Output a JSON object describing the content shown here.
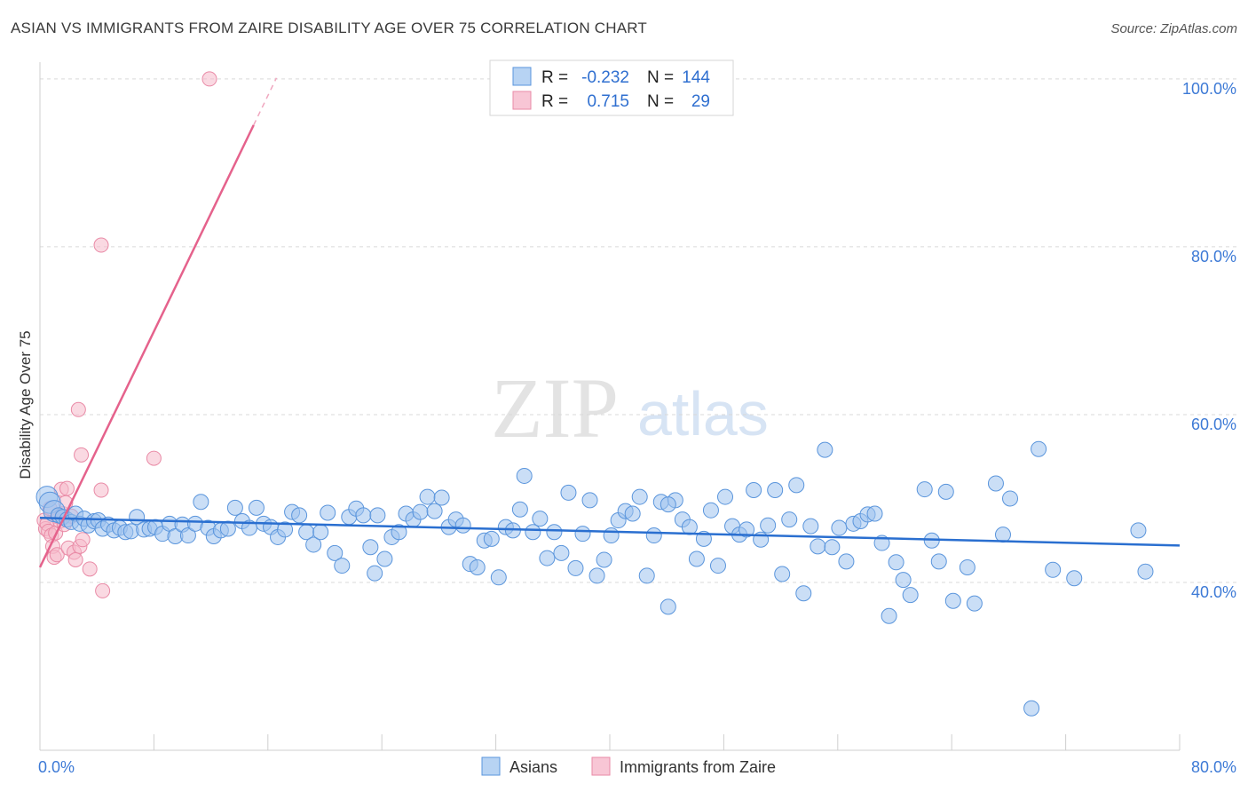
{
  "title": "ASIAN VS IMMIGRANTS FROM ZAIRE DISABILITY AGE OVER 75 CORRELATION CHART",
  "source": "Source: ZipAtlas.com",
  "watermark": {
    "zip": "ZIP",
    "atlas": "atlas"
  },
  "colors": {
    "blue_fill": "#9ec3ef",
    "blue_stroke": "#5a95dc",
    "blue_line": "#2a6fd0",
    "pink_fill": "#f6b9cb",
    "pink_stroke": "#e98aa6",
    "pink_line": "#e5628c",
    "grid": "#d9d9d9",
    "axis_text": "#3d7ad6"
  },
  "legend": {
    "r_label": "R =",
    "n_label": "N =",
    "entries": [
      {
        "r": "-0.232",
        "n": "144"
      },
      {
        "r": "0.715",
        "n": "29"
      }
    ]
  },
  "bottom_legend": [
    "Asians",
    "Immigrants from Zaire"
  ],
  "chart_data": {
    "type": "scatter",
    "title": "ASIAN VS IMMIGRANTS FROM ZAIRE DISABILITY AGE OVER 75 CORRELATION CHART",
    "xlabel": "",
    "ylabel": "Disability Age Over 75",
    "xlim": [
      0,
      80
    ],
    "ylim": [
      20,
      102
    ],
    "x_tick_labels": [
      "0.0%",
      "80.0%"
    ],
    "y_ticks": [
      40,
      60,
      80,
      100
    ],
    "y_tick_labels": [
      "40.0%",
      "60.0%",
      "80.0%",
      "100.0%"
    ],
    "series": [
      {
        "name": "Asians",
        "color": "blue",
        "trend": {
          "x": [
            0,
            80
          ],
          "y": [
            47.7,
            44.4
          ]
        },
        "points": [
          [
            0.5,
            50.2
          ],
          [
            0.7,
            49.5
          ],
          [
            1.0,
            48.5
          ],
          [
            1.3,
            48.0
          ],
          [
            1.6,
            47.8
          ],
          [
            1.9,
            47.5
          ],
          [
            2.2,
            47.2
          ],
          [
            2.5,
            48.2
          ],
          [
            2.8,
            47.0
          ],
          [
            3.1,
            47.6
          ],
          [
            3.4,
            46.8
          ],
          [
            3.8,
            47.3
          ],
          [
            4.1,
            47.4
          ],
          [
            4.4,
            46.4
          ],
          [
            4.8,
            46.9
          ],
          [
            5.2,
            46.2
          ],
          [
            5.6,
            46.5
          ],
          [
            6.0,
            46.0
          ],
          [
            6.4,
            46.1
          ],
          [
            6.8,
            47.8
          ],
          [
            7.3,
            46.3
          ],
          [
            7.7,
            46.4
          ],
          [
            8.1,
            46.6
          ],
          [
            8.6,
            45.8
          ],
          [
            9.1,
            47.0
          ],
          [
            9.5,
            45.5
          ],
          [
            10.0,
            46.9
          ],
          [
            10.4,
            45.6
          ],
          [
            10.9,
            47.0
          ],
          [
            11.3,
            49.6
          ],
          [
            11.8,
            46.5
          ],
          [
            12.2,
            45.5
          ],
          [
            12.7,
            46.2
          ],
          [
            13.2,
            46.4
          ],
          [
            13.7,
            48.9
          ],
          [
            14.2,
            47.3
          ],
          [
            14.7,
            46.5
          ],
          [
            15.2,
            48.9
          ],
          [
            15.7,
            47.0
          ],
          [
            16.2,
            46.6
          ],
          [
            16.7,
            45.4
          ],
          [
            17.2,
            46.3
          ],
          [
            17.7,
            48.4
          ],
          [
            18.2,
            48.0
          ],
          [
            18.7,
            46.0
          ],
          [
            19.2,
            44.5
          ],
          [
            19.7,
            46.0
          ],
          [
            20.2,
            48.3
          ],
          [
            20.7,
            43.5
          ],
          [
            21.2,
            42.0
          ],
          [
            21.7,
            47.8
          ],
          [
            22.2,
            48.8
          ],
          [
            22.7,
            48.0
          ],
          [
            23.2,
            44.2
          ],
          [
            23.7,
            48.0
          ],
          [
            24.2,
            42.8
          ],
          [
            24.7,
            45.4
          ],
          [
            25.2,
            46.0
          ],
          [
            25.7,
            48.2
          ],
          [
            26.2,
            47.5
          ],
          [
            26.7,
            48.4
          ],
          [
            27.2,
            50.2
          ],
          [
            27.7,
            48.5
          ],
          [
            28.2,
            50.1
          ],
          [
            28.7,
            46.6
          ],
          [
            29.2,
            47.5
          ],
          [
            29.7,
            46.8
          ],
          [
            30.2,
            42.2
          ],
          [
            30.7,
            41.8
          ],
          [
            31.2,
            45.0
          ],
          [
            31.7,
            45.2
          ],
          [
            32.2,
            40.6
          ],
          [
            32.7,
            46.6
          ],
          [
            33.2,
            46.2
          ],
          [
            33.7,
            48.7
          ],
          [
            34.0,
            52.7
          ],
          [
            34.6,
            46.0
          ],
          [
            35.1,
            47.6
          ],
          [
            35.6,
            42.9
          ],
          [
            36.1,
            46.0
          ],
          [
            36.6,
            43.5
          ],
          [
            37.1,
            50.7
          ],
          [
            37.6,
            41.7
          ],
          [
            38.1,
            45.8
          ],
          [
            38.6,
            49.8
          ],
          [
            39.1,
            40.8
          ],
          [
            39.6,
            42.7
          ],
          [
            40.1,
            45.6
          ],
          [
            40.6,
            47.4
          ],
          [
            41.1,
            48.5
          ],
          [
            41.6,
            48.2
          ],
          [
            42.1,
            50.2
          ],
          [
            42.6,
            40.8
          ],
          [
            43.1,
            45.6
          ],
          [
            43.6,
            49.6
          ],
          [
            44.1,
            37.1
          ],
          [
            44.6,
            49.8
          ],
          [
            45.1,
            47.5
          ],
          [
            45.6,
            46.6
          ],
          [
            46.1,
            42.8
          ],
          [
            46.6,
            45.2
          ],
          [
            47.1,
            48.6
          ],
          [
            47.6,
            42.0
          ],
          [
            48.1,
            50.2
          ],
          [
            48.6,
            46.7
          ],
          [
            49.1,
            45.7
          ],
          [
            49.6,
            46.3
          ],
          [
            50.1,
            51.0
          ],
          [
            50.6,
            45.1
          ],
          [
            51.1,
            46.8
          ],
          [
            51.6,
            51.0
          ],
          [
            52.1,
            41.0
          ],
          [
            52.6,
            47.5
          ],
          [
            53.1,
            51.6
          ],
          [
            53.6,
            38.7
          ],
          [
            54.1,
            46.7
          ],
          [
            54.6,
            44.3
          ],
          [
            55.1,
            55.8
          ],
          [
            55.6,
            44.2
          ],
          [
            56.1,
            46.5
          ],
          [
            56.6,
            42.5
          ],
          [
            57.1,
            47.0
          ],
          [
            57.6,
            47.3
          ],
          [
            58.1,
            48.1
          ],
          [
            58.6,
            48.2
          ],
          [
            59.1,
            44.7
          ],
          [
            59.6,
            36.0
          ],
          [
            60.1,
            42.4
          ],
          [
            60.6,
            40.3
          ],
          [
            61.1,
            38.5
          ],
          [
            62.1,
            51.1
          ],
          [
            62.6,
            45.0
          ],
          [
            63.1,
            42.5
          ],
          [
            63.6,
            50.8
          ],
          [
            64.1,
            37.8
          ],
          [
            65.1,
            41.8
          ],
          [
            65.6,
            37.5
          ],
          [
            67.1,
            51.8
          ],
          [
            67.6,
            45.7
          ],
          [
            68.1,
            50.0
          ],
          [
            69.6,
            25.0
          ],
          [
            71.1,
            41.5
          ],
          [
            72.6,
            40.5
          ],
          [
            77.1,
            46.2
          ],
          [
            77.6,
            41.3
          ],
          [
            70.1,
            55.9
          ],
          [
            44.1,
            49.3
          ],
          [
            23.5,
            41.1
          ]
        ]
      },
      {
        "name": "Immigrants from Zaire",
        "color": "pink",
        "trend": {
          "x": [
            0,
            15.0
          ],
          "y": [
            41.8,
            94.5
          ],
          "x_dashed_end": 16.6
        },
        "points": [
          [
            0.3,
            47.4
          ],
          [
            0.4,
            46.4
          ],
          [
            0.5,
            47.0
          ],
          [
            0.6,
            46.1
          ],
          [
            0.7,
            48.8
          ],
          [
            0.8,
            45.6
          ],
          [
            0.9,
            44.3
          ],
          [
            1.0,
            43.0
          ],
          [
            1.1,
            45.9
          ],
          [
            1.2,
            43.3
          ],
          [
            1.3,
            47.8
          ],
          [
            1.4,
            47.3
          ],
          [
            1.5,
            51.1
          ],
          [
            1.6,
            48.2
          ],
          [
            1.7,
            46.9
          ],
          [
            1.8,
            49.5
          ],
          [
            1.9,
            51.2
          ],
          [
            2.0,
            44.1
          ],
          [
            2.2,
            47.9
          ],
          [
            2.4,
            43.6
          ],
          [
            2.5,
            42.7
          ],
          [
            2.8,
            44.3
          ],
          [
            2.9,
            55.2
          ],
          [
            3.0,
            45.1
          ],
          [
            3.5,
            41.6
          ],
          [
            4.4,
            39.0
          ],
          [
            4.3,
            51.0
          ],
          [
            8.0,
            54.8
          ],
          [
            11.9,
            100.0
          ]
        ],
        "extra_points": [
          [
            4.3,
            80.2
          ],
          [
            2.7,
            60.6
          ]
        ]
      }
    ]
  }
}
